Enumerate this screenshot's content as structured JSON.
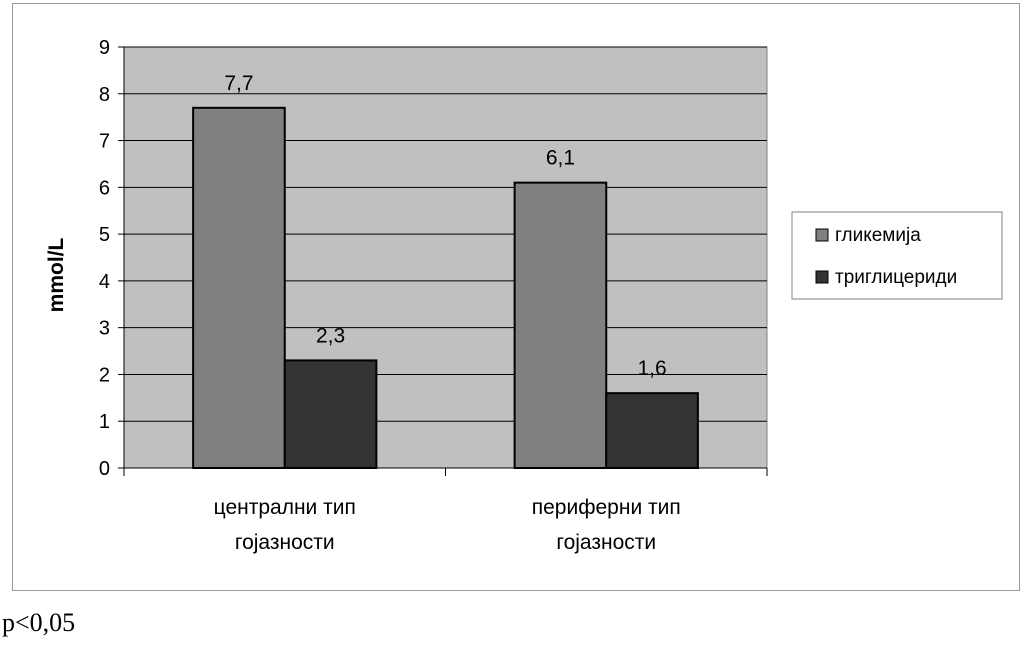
{
  "chart_data": {
    "type": "bar",
    "categories": [
      [
        "централни тип",
        "гојазности"
      ],
      [
        "периферни тип",
        "гојазности"
      ]
    ],
    "series": [
      {
        "name": "гликемија",
        "values": [
          7.7,
          6.1
        ],
        "labels": [
          "7,7",
          "6,1"
        ],
        "color": "#808080"
      },
      {
        "name": "триглицериди",
        "values": [
          2.3,
          1.6
        ],
        "labels": [
          "2,3",
          "1,6"
        ],
        "color": "#333333"
      }
    ],
    "ylabel": "mmol/L",
    "ylim": [
      0,
      9
    ],
    "yticks": [
      "0",
      "1",
      "2",
      "3",
      "4",
      "5",
      "6",
      "7",
      "8",
      "9"
    ],
    "grid": true,
    "plot_background": "#c0c0c0",
    "legend_position": "right"
  },
  "footnote": "p<0,05"
}
